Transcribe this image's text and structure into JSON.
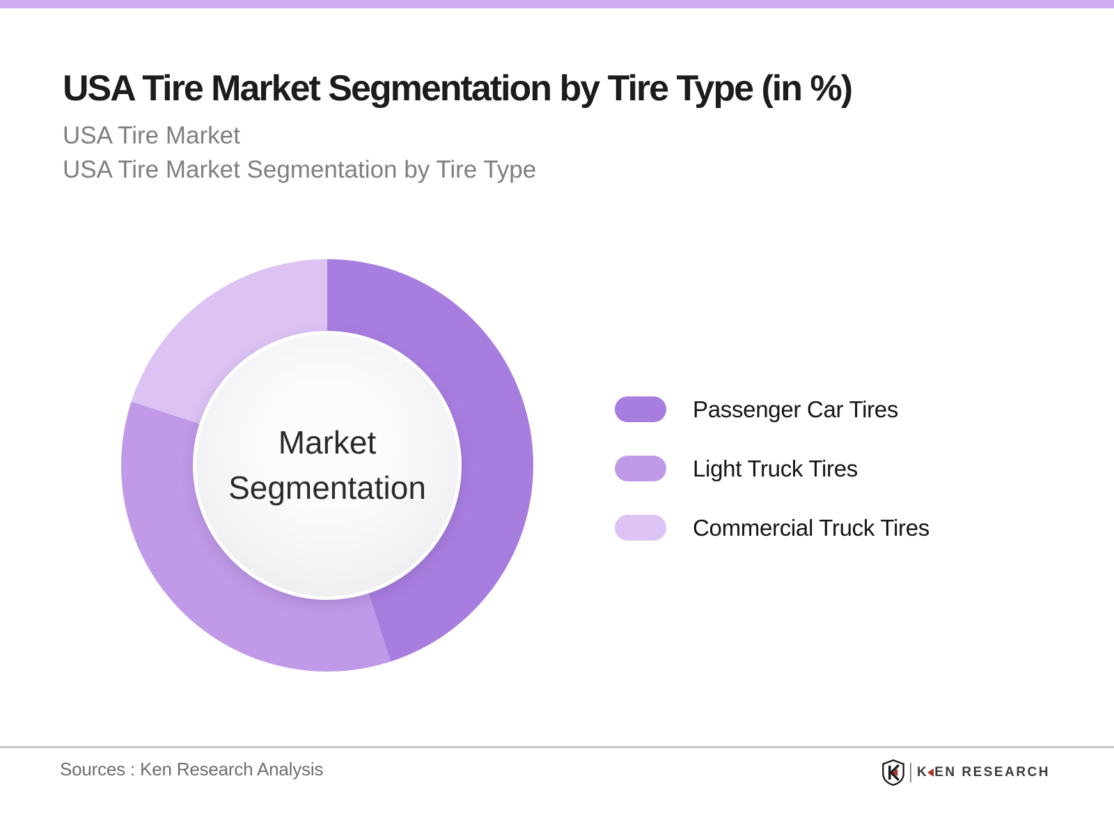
{
  "page": {
    "top_accent_color": "#cfabf0",
    "background_color": "#ffffff",
    "divider_color": "#c4c4c4"
  },
  "header": {
    "title": "USA Tire Market Segmentation by Tire Type (in %)",
    "subtitle_line1": "USA Tire Market",
    "subtitle_line2": "USA Tire Market Segmentation by Tire Type"
  },
  "chart_data": {
    "type": "pie",
    "subtype": "donut",
    "title": "USA Tire Market Segmentation by Tire Type (in %)",
    "unit": "%",
    "center_label": "Market Segmentation",
    "start_angle_deg": 0,
    "direction": "clockwise",
    "values_labeled_on_chart": false,
    "legend_position": "right",
    "segments": [
      {
        "label": "Passenger Car Tires",
        "value": 45,
        "color": "#a87de0"
      },
      {
        "label": "Light Truck Tires",
        "value": 35,
        "color": "#c09ae8"
      },
      {
        "label": "Commercial Truck Tires",
        "value": 20,
        "color": "#dcc3f4"
      }
    ]
  },
  "footer": {
    "sources": "Sources : Ken Research Analysis",
    "logo_k": "K",
    "logo_rest": "EN RESEARCH"
  }
}
